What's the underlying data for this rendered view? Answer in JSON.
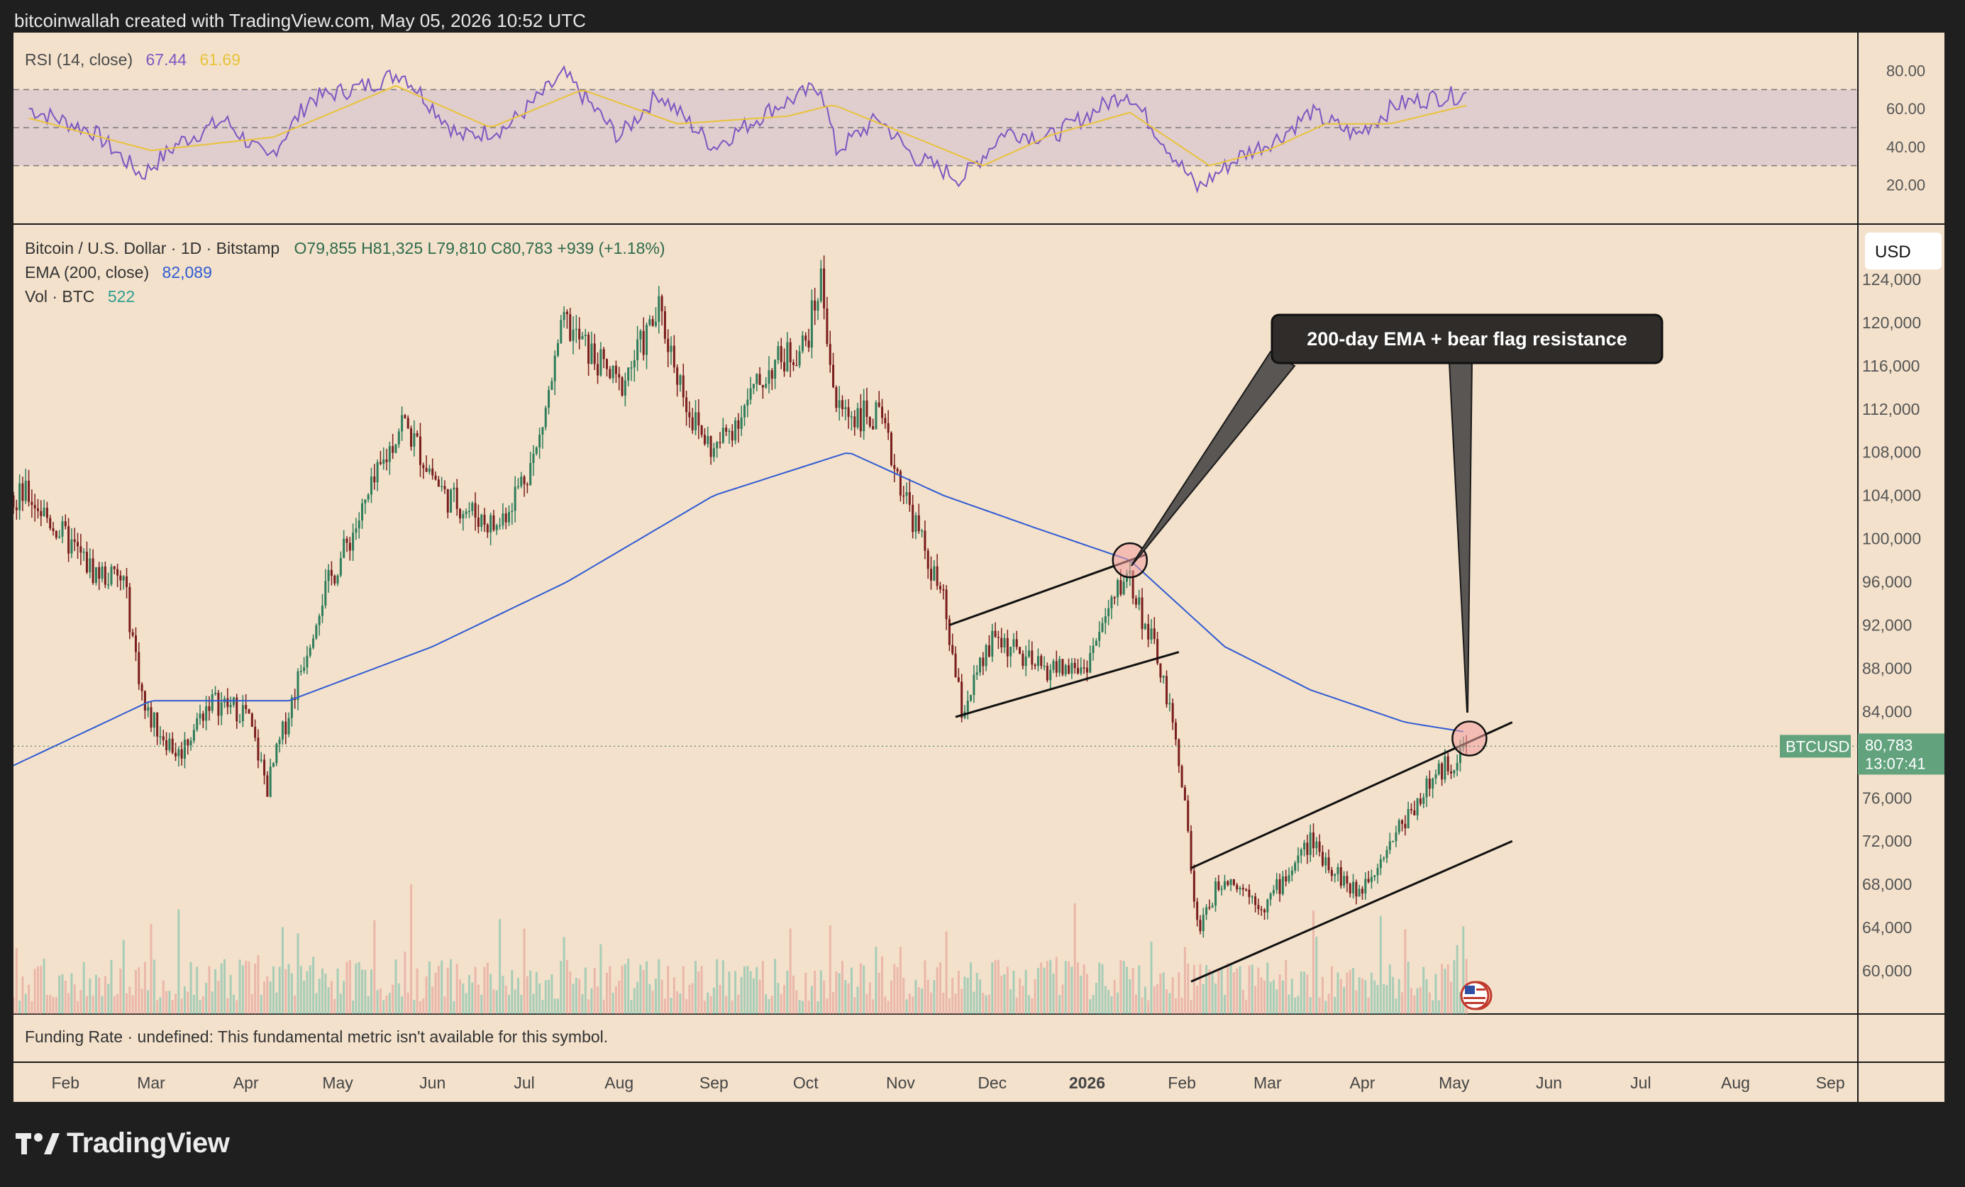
{
  "header": {
    "attribution": "bitcoinwallah created with TradingView.com, May 05, 2026 10:52 UTC"
  },
  "rsi": {
    "label": "RSI (14, close)",
    "value": "67.44",
    "ma_value": "61.69",
    "ticks": [
      "80.00",
      "60.00",
      "40.00",
      "20.00"
    ],
    "range": [
      0,
      100
    ],
    "bands": [
      30,
      50,
      70
    ],
    "band_range": [
      30,
      70
    ]
  },
  "legend": {
    "symbol": "Bitcoin / U.S. Dollar · 1D · Bitstamp",
    "ohlc": "O79,855  H81,325  L79,810  C80,783  +939 (+1.18%)",
    "ema_label": "EMA (200, close)",
    "ema_value": "82,089",
    "vol_label": "Vol · BTC",
    "vol_value": "522"
  },
  "currency_button": "USD",
  "price_axis": {
    "ticks": [
      "124,000",
      "120,000",
      "116,000",
      "112,000",
      "108,000",
      "104,000",
      "100,000",
      "96,000",
      "92,000",
      "88,000",
      "84,000",
      "76,000",
      "72,000",
      "68,000",
      "64,000",
      "60,000"
    ],
    "tick_values": [
      124000,
      120000,
      116000,
      112000,
      108000,
      104000,
      100000,
      96000,
      92000,
      88000,
      84000,
      76000,
      72000,
      68000,
      64000,
      60000
    ],
    "range": [
      56000,
      128000
    ]
  },
  "last_price": {
    "symbol_label": "BTCUSD",
    "price": "80,783",
    "countdown": "13:07:41",
    "value": 80783
  },
  "annotation": {
    "text": "200-day EMA + bear flag resistance"
  },
  "funding": {
    "text": "Funding Rate · undefined: This fundamental metric isn't available for this symbol."
  },
  "time_axis": {
    "labels": [
      "Feb",
      "Mar",
      "Apr",
      "May",
      "Jun",
      "Jul",
      "Aug",
      "Sep",
      "Oct",
      "Nov",
      "Dec",
      "2026",
      "Feb",
      "Mar",
      "Apr",
      "May",
      "Jun",
      "Jul",
      "Aug",
      "Sep"
    ]
  },
  "brand": {
    "name": "TradingView"
  },
  "colors": {
    "up": "#2e7d5b",
    "down": "#7a1d1d",
    "ema": "#2f5bd3",
    "rsi": "#7e57c2",
    "rsi_ma": "#e8c33a",
    "label_green": "#62a37e",
    "background": "#f3e1cb"
  },
  "chart_data": {
    "type": "candlestick",
    "title": "Bitcoin / U.S. Dollar · 1D · Bitstamp",
    "x_range": [
      "2025-01-15",
      "2026-09-10"
    ],
    "y_range": [
      56000,
      128000
    ],
    "close_series": [
      {
        "date": "2025-01-20",
        "value": 104000
      },
      {
        "date": "2025-02-01",
        "value": 100000
      },
      {
        "date": "2025-02-10",
        "value": 97000
      },
      {
        "date": "2025-02-20",
        "value": 96000
      },
      {
        "date": "2025-02-27",
        "value": 84000
      },
      {
        "date": "2025-03-10",
        "value": 80000
      },
      {
        "date": "2025-03-20",
        "value": 85000
      },
      {
        "date": "2025-04-01",
        "value": 84000
      },
      {
        "date": "2025-04-08",
        "value": 77000
      },
      {
        "date": "2025-04-15",
        "value": 84000
      },
      {
        "date": "2025-04-25",
        "value": 94000
      },
      {
        "date": "2025-05-10",
        "value": 103000
      },
      {
        "date": "2025-05-22",
        "value": 111000
      },
      {
        "date": "2025-06-05",
        "value": 104000
      },
      {
        "date": "2025-06-22",
        "value": 101000
      },
      {
        "date": "2025-07-05",
        "value": 108000
      },
      {
        "date": "2025-07-14",
        "value": 120000
      },
      {
        "date": "2025-08-01",
        "value": 114000
      },
      {
        "date": "2025-08-14",
        "value": 121000
      },
      {
        "date": "2025-08-25",
        "value": 111000
      },
      {
        "date": "2025-09-01",
        "value": 108000
      },
      {
        "date": "2025-09-20",
        "value": 116000
      },
      {
        "date": "2025-10-01",
        "value": 118000
      },
      {
        "date": "2025-10-06",
        "value": 124000
      },
      {
        "date": "2025-10-11",
        "value": 112000
      },
      {
        "date": "2025-10-25",
        "value": 111000
      },
      {
        "date": "2025-11-05",
        "value": 102000
      },
      {
        "date": "2025-11-15",
        "value": 94000
      },
      {
        "date": "2025-11-21",
        "value": 84000
      },
      {
        "date": "2025-12-02",
        "value": 91000
      },
      {
        "date": "2025-12-15",
        "value": 88000
      },
      {
        "date": "2025-12-31",
        "value": 88000
      },
      {
        "date": "2026-01-14",
        "value": 97000
      },
      {
        "date": "2026-01-25",
        "value": 88000
      },
      {
        "date": "2026-02-01",
        "value": 78000
      },
      {
        "date": "2026-02-06",
        "value": 64000
      },
      {
        "date": "2026-02-15",
        "value": 69000
      },
      {
        "date": "2026-02-28",
        "value": 66000
      },
      {
        "date": "2026-03-15",
        "value": 72000
      },
      {
        "date": "2026-03-30",
        "value": 67000
      },
      {
        "date": "2026-04-10",
        "value": 72000
      },
      {
        "date": "2026-04-22",
        "value": 77000
      },
      {
        "date": "2026-05-05",
        "value": 80783
      }
    ],
    "ema_200": [
      {
        "date": "2025-01-15",
        "value": 79000
      },
      {
        "date": "2025-03-01",
        "value": 85000
      },
      {
        "date": "2025-04-15",
        "value": 85000
      },
      {
        "date": "2025-06-01",
        "value": 90000
      },
      {
        "date": "2025-07-15",
        "value": 96000
      },
      {
        "date": "2025-09-01",
        "value": 104000
      },
      {
        "date": "2025-10-15",
        "value": 108000
      },
      {
        "date": "2025-11-15",
        "value": 104000
      },
      {
        "date": "2025-12-15",
        "value": 101000
      },
      {
        "date": "2026-01-15",
        "value": 98000
      },
      {
        "date": "2026-02-15",
        "value": 90000
      },
      {
        "date": "2026-03-15",
        "value": 86000
      },
      {
        "date": "2026-04-15",
        "value": 83000
      },
      {
        "date": "2026-05-05",
        "value": 82089
      }
    ],
    "trendlines": [
      {
        "from": {
          "date": "2025-11-17",
          "value": 92000
        },
        "to": {
          "date": "2026-01-20",
          "value": 98500
        }
      },
      {
        "from": {
          "date": "2025-11-19",
          "value": 83500
        },
        "to": {
          "date": "2026-01-31",
          "value": 89500
        }
      },
      {
        "from": {
          "date": "2026-02-04",
          "value": 69500
        },
        "to": {
          "date": "2026-05-20",
          "value": 83000
        }
      },
      {
        "from": {
          "date": "2026-02-04",
          "value": 59000
        },
        "to": {
          "date": "2026-05-20",
          "value": 72000
        }
      }
    ],
    "highlights": [
      {
        "date": "2026-01-15",
        "value": 98000
      },
      {
        "date": "2026-05-06",
        "value": 81500
      }
    ],
    "rsi_series": [
      {
        "date": "2025-01-20",
        "value": 60
      },
      {
        "date": "2025-02-10",
        "value": 48
      },
      {
        "date": "2025-02-26",
        "value": 25
      },
      {
        "date": "2025-03-10",
        "value": 42
      },
      {
        "date": "2025-03-25",
        "value": 54
      },
      {
        "date": "2025-04-08",
        "value": 33
      },
      {
        "date": "2025-04-22",
        "value": 65
      },
      {
        "date": "2025-05-10",
        "value": 72
      },
      {
        "date": "2025-05-22",
        "value": 79
      },
      {
        "date": "2025-06-10",
        "value": 45
      },
      {
        "date": "2025-06-25",
        "value": 50
      },
      {
        "date": "2025-07-14",
        "value": 78
      },
      {
        "date": "2025-08-01",
        "value": 45
      },
      {
        "date": "2025-08-14",
        "value": 68
      },
      {
        "date": "2025-09-01",
        "value": 40
      },
      {
        "date": "2025-09-20",
        "value": 60
      },
      {
        "date": "2025-10-06",
        "value": 72
      },
      {
        "date": "2025-10-11",
        "value": 38
      },
      {
        "date": "2025-10-25",
        "value": 55
      },
      {
        "date": "2025-11-05",
        "value": 35
      },
      {
        "date": "2025-11-21",
        "value": 23
      },
      {
        "date": "2025-12-05",
        "value": 48
      },
      {
        "date": "2025-12-20",
        "value": 45
      },
      {
        "date": "2026-01-14",
        "value": 69
      },
      {
        "date": "2026-01-25",
        "value": 45
      },
      {
        "date": "2026-02-06",
        "value": 18
      },
      {
        "date": "2026-02-20",
        "value": 35
      },
      {
        "date": "2026-03-05",
        "value": 45
      },
      {
        "date": "2026-03-15",
        "value": 58
      },
      {
        "date": "2026-03-30",
        "value": 46
      },
      {
        "date": "2026-04-12",
        "value": 62
      },
      {
        "date": "2026-04-25",
        "value": 66
      },
      {
        "date": "2026-05-05",
        "value": 67.44
      }
    ],
    "rsi_ma_series": [
      {
        "date": "2025-01-20",
        "value": 55
      },
      {
        "date": "2025-03-01",
        "value": 38
      },
      {
        "date": "2025-04-10",
        "value": 45
      },
      {
        "date": "2025-05-20",
        "value": 72
      },
      {
        "date": "2025-06-20",
        "value": 50
      },
      {
        "date": "2025-07-20",
        "value": 70
      },
      {
        "date": "2025-08-20",
        "value": 52
      },
      {
        "date": "2025-09-25",
        "value": 56
      },
      {
        "date": "2025-10-10",
        "value": 62
      },
      {
        "date": "2025-11-10",
        "value": 42
      },
      {
        "date": "2025-11-28",
        "value": 30
      },
      {
        "date": "2025-12-20",
        "value": 46
      },
      {
        "date": "2026-01-15",
        "value": 58
      },
      {
        "date": "2026-02-10",
        "value": 30
      },
      {
        "date": "2026-03-01",
        "value": 38
      },
      {
        "date": "2026-03-20",
        "value": 52
      },
      {
        "date": "2026-04-10",
        "value": 52
      },
      {
        "date": "2026-05-05",
        "value": 61.69
      }
    ]
  }
}
